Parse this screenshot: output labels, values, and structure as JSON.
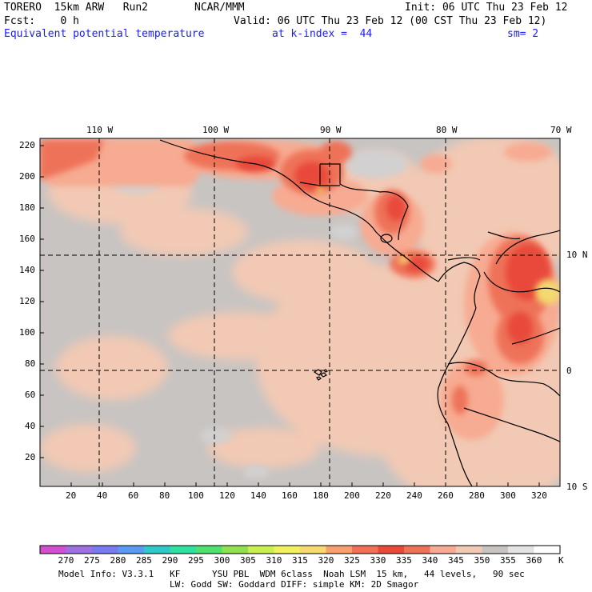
{
  "header": {
    "model_name": "TORERO  15km ARW   Run2",
    "org": "NCAR/MMM",
    "init": "Init: 06 UTC Thu 23 Feb 12",
    "fcst": "Fcst:    0 h",
    "valid": "Valid: 06 UTC Thu 23 Feb 12 (00 CST Thu 23 Feb 12)",
    "field": "Equivalent potential temperature",
    "level": "at k-index =  44",
    "smoothing": "sm= 2"
  },
  "map": {
    "top_lon_labels": [
      "110 W",
      "100 W",
      "90 W",
      "80 W",
      "70 W"
    ],
    "right_lat_labels": [
      "10 N",
      "0",
      "10 S"
    ],
    "x_ticks": [
      "20",
      "40",
      "60",
      "80",
      "100",
      "120",
      "140",
      "160",
      "180",
      "200",
      "220",
      "240",
      "260",
      "280",
      "300",
      "320"
    ],
    "y_ticks": [
      "220",
      "200",
      "180",
      "160",
      "140",
      "120",
      "100",
      "80",
      "60",
      "40",
      "20"
    ],
    "colors": {
      "ocean_cool": "#c8c4c2",
      "ocean_warm": "#f2c9b4",
      "mid": "#f7ab92",
      "warm": "#ee7258",
      "hot": "#e84a3a",
      "hottest": "#f4d870",
      "coast": "#000000"
    }
  },
  "colorbar": {
    "labels": [
      "270",
      "275",
      "280",
      "285",
      "290",
      "295",
      "300",
      "305",
      "310",
      "315",
      "320",
      "325",
      "330",
      "335",
      "340",
      "345",
      "350",
      "355",
      "360"
    ],
    "unit": "K",
    "colors": [
      "#d050d0",
      "#a070e0",
      "#7a7af0",
      "#5a9af0",
      "#30c8c8",
      "#30e0a0",
      "#50e070",
      "#90e050",
      "#c8f050",
      "#f0f060",
      "#f8d870",
      "#f8a070",
      "#f07058",
      "#e84a3a",
      "#ee7258",
      "#f7ab92",
      "#f2c9b4",
      "#c8c4c2",
      "#e4e2e2",
      "#ffffff"
    ]
  },
  "footer": {
    "line1": "Model Info: V3.3.1   KF      YSU PBL  WDM 6class  Noah LSM  15 km,   44 levels,   90 sec",
    "line2": "LW: Godd SW: Goddard DIFF: simple KM: 2D Smagor"
  }
}
